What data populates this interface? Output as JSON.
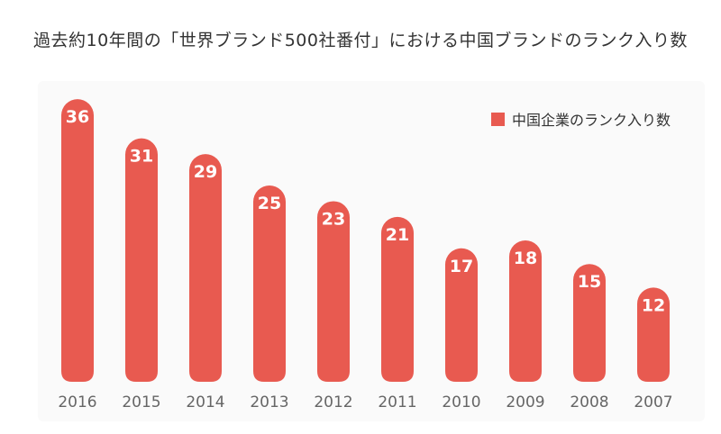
{
  "chart_data": {
    "type": "bar",
    "title": "過去約10年間の「世界ブランド500社番付」における中国ブランドのランク入り数",
    "categories": [
      "2016",
      "2015",
      "2014",
      "2013",
      "2012",
      "2011",
      "2010",
      "2009",
      "2008",
      "2007"
    ],
    "series": [
      {
        "name": "中国企業のランク入り数",
        "values": [
          36,
          31,
          29,
          25,
          23,
          21,
          17,
          18,
          15,
          12
        ]
      }
    ],
    "ylim": [
      0,
      40
    ],
    "grid": false,
    "legend_position": "top-right",
    "colors": {
      "bar": "#e85a50",
      "label": "#ffffff",
      "tick": "#666666"
    }
  }
}
